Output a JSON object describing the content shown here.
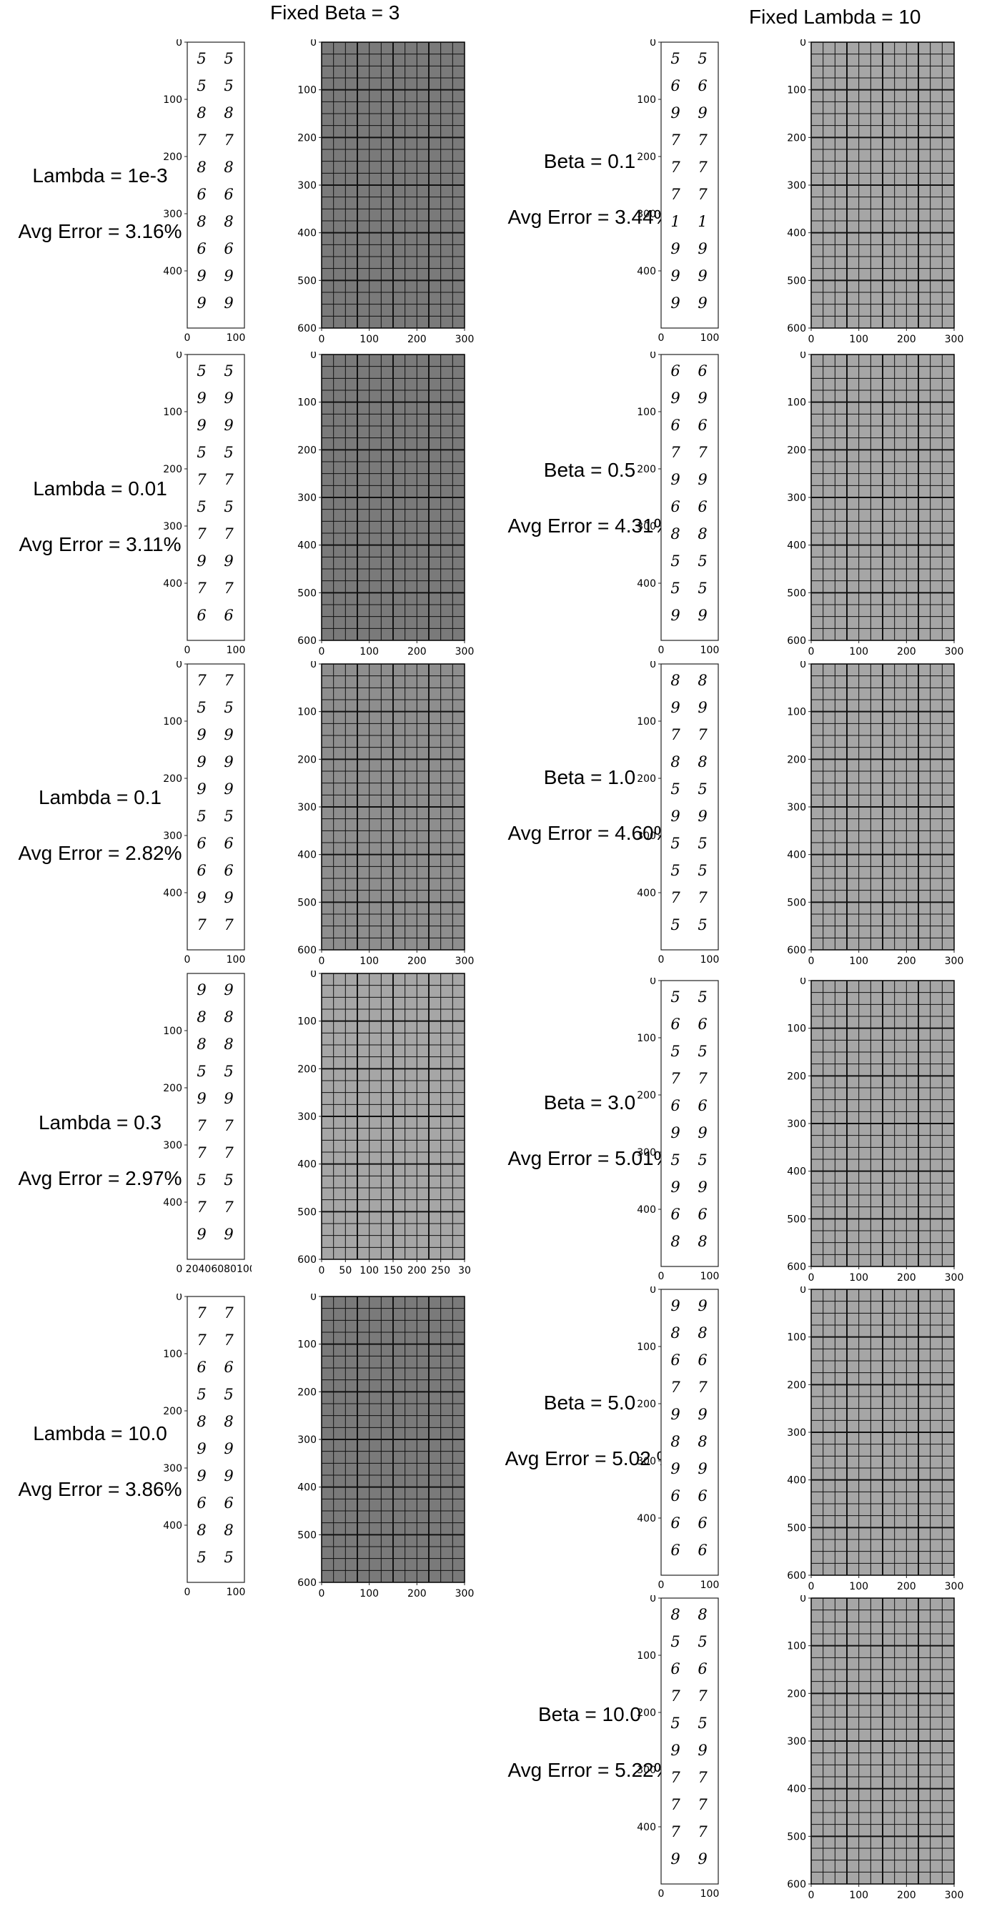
{
  "headers": {
    "left": "Fixed Beta = 3",
    "right": "Fixed Lambda = 10"
  },
  "left_rows": [
    {
      "param": "Lambda = 1e-3",
      "error": "Avg Error = 3.16%",
      "digits": [
        "5",
        "5",
        "8",
        "7",
        "8",
        "6",
        "8",
        "6",
        "9",
        "9"
      ],
      "pair_ticks": [
        "0",
        "100",
        "200",
        "300",
        "400"
      ],
      "pair_xticks": [
        "0",
        "100"
      ],
      "grid_yticks": [
        "0",
        "100",
        "200",
        "300",
        "400",
        "500",
        "600"
      ],
      "grid_xticks": [
        "0",
        "100",
        "200",
        "300"
      ],
      "tone": "dark"
    },
    {
      "param": "Lambda = 0.01",
      "error": "Avg Error = 3.11%",
      "digits": [
        "5",
        "9",
        "9",
        "5",
        "7",
        "5",
        "7",
        "9",
        "7",
        "6"
      ],
      "pair_ticks": [
        "0",
        "100",
        "200",
        "300",
        "400"
      ],
      "pair_xticks": [
        "0",
        "100"
      ],
      "grid_yticks": [
        "0",
        "100",
        "200",
        "300",
        "400",
        "500",
        "600"
      ],
      "grid_xticks": [
        "0",
        "100",
        "200",
        "300"
      ],
      "tone": "dark"
    },
    {
      "param": "Lambda = 0.1",
      "error": "Avg Error = 2.82%",
      "digits": [
        "7",
        "5",
        "9",
        "9",
        "9",
        "5",
        "6",
        "6",
        "9",
        "7"
      ],
      "pair_ticks": [
        "0",
        "100",
        "200",
        "300",
        "400"
      ],
      "pair_xticks": [
        "0",
        "100"
      ],
      "grid_yticks": [
        "0",
        "100",
        "200",
        "300",
        "400",
        "500",
        "600"
      ],
      "grid_xticks": [
        "0",
        "100",
        "200",
        "300"
      ],
      "tone": "mid"
    },
    {
      "param": "Lambda = 0.3",
      "error": "Avg Error = 2.97%",
      "digits": [
        "9",
        "8",
        "8",
        "5",
        "9",
        "7",
        "7",
        "5",
        "7",
        "9"
      ],
      "pair_ticks": [
        "100",
        "200",
        "300",
        "400"
      ],
      "pair_xticks": [
        "0 20406080100"
      ],
      "grid_yticks": [
        "0",
        "100",
        "200",
        "300",
        "400",
        "500",
        "600"
      ],
      "grid_xticks": [
        "0",
        "50",
        "100",
        "150",
        "200",
        "250",
        "30"
      ],
      "tone": "light"
    },
    {
      "param": "Lambda = 10.0",
      "error": "Avg Error = 3.86%",
      "digits": [
        "7",
        "7",
        "6",
        "5",
        "8",
        "9",
        "9",
        "6",
        "8",
        "5"
      ],
      "pair_ticks": [
        "0",
        "100",
        "200",
        "300",
        "400"
      ],
      "pair_xticks": [
        "0",
        "100"
      ],
      "grid_yticks": [
        "0",
        "100",
        "200",
        "300",
        "400",
        "500",
        "600"
      ],
      "grid_xticks": [
        "0",
        "100",
        "200",
        "300"
      ],
      "tone": "dark"
    }
  ],
  "right_rows": [
    {
      "param": "Beta = 0.1",
      "error": "Avg Error = 3.44%",
      "digits": [
        "5",
        "6",
        "9",
        "7",
        "7",
        "7",
        "1",
        "9",
        "9",
        "9"
      ],
      "pair_ticks": [
        "0",
        "100",
        "200",
        "300",
        "400"
      ],
      "pair_xticks": [
        "0",
        "100"
      ],
      "grid_yticks": [
        "0",
        "100",
        "200",
        "300",
        "400",
        "500",
        "600"
      ],
      "grid_xticks": [
        "0",
        "100",
        "200",
        "300"
      ],
      "tone": "light"
    },
    {
      "param": "Beta = 0.5",
      "error": "Avg Error = 4.31%",
      "digits": [
        "6",
        "9",
        "6",
        "7",
        "9",
        "6",
        "8",
        "5",
        "5",
        "9"
      ],
      "pair_ticks": [
        "0",
        "100",
        "200",
        "300",
        "400"
      ],
      "pair_xticks": [
        "0",
        "100"
      ],
      "grid_yticks": [
        "0",
        "100",
        "200",
        "300",
        "400",
        "500",
        "600"
      ],
      "grid_xticks": [
        "0",
        "100",
        "200",
        "300"
      ],
      "tone": "light"
    },
    {
      "param": "Beta = 1.0",
      "error": "Avg Error = 4.60%",
      "digits": [
        "8",
        "9",
        "7",
        "8",
        "5",
        "9",
        "5",
        "5",
        "7",
        "5"
      ],
      "pair_ticks": [
        "0",
        "100",
        "200",
        "300",
        "400"
      ],
      "pair_xticks": [
        "0",
        "100"
      ],
      "grid_yticks": [
        "0",
        "100",
        "200",
        "300",
        "400",
        "500",
        "600"
      ],
      "grid_xticks": [
        "0",
        "100",
        "200",
        "300"
      ],
      "tone": "light"
    },
    {
      "param": "Beta = 3.0",
      "error": "Avg Error = 5.01%",
      "digits": [
        "5",
        "6",
        "5",
        "7",
        "6",
        "9",
        "5",
        "9",
        "6",
        "8"
      ],
      "pair_ticks": [
        "0",
        "100",
        "200",
        "300",
        "400"
      ],
      "pair_xticks": [
        "0",
        "100"
      ],
      "grid_yticks": [
        "0",
        "100",
        "200",
        "300",
        "400",
        "500",
        "600"
      ],
      "grid_xticks": [
        "0",
        "100",
        "200",
        "300"
      ],
      "tone": "light"
    },
    {
      "param": "Beta = 5.0",
      "error": "Avg Error = 5.02 %",
      "digits": [
        "9",
        "8",
        "6",
        "7",
        "9",
        "8",
        "9",
        "6",
        "6",
        "6"
      ],
      "pair_ticks": [
        "0",
        "100",
        "200",
        "300",
        "400"
      ],
      "pair_xticks": [
        "0",
        "100"
      ],
      "grid_yticks": [
        "0",
        "100",
        "200",
        "300",
        "400",
        "500",
        "600"
      ],
      "grid_xticks": [
        "0",
        "100",
        "200",
        "300"
      ],
      "tone": "light"
    },
    {
      "param": "Beta = 10.0",
      "error": "Avg Error = 5.22%",
      "digits": [
        "8",
        "5",
        "6",
        "7",
        "5",
        "9",
        "7",
        "7",
        "7",
        "9"
      ],
      "pair_ticks": [
        "0",
        "100",
        "200",
        "300",
        "400"
      ],
      "pair_xticks": [
        "0",
        "100"
      ],
      "grid_yticks": [
        "0",
        "100",
        "200",
        "300",
        "400",
        "500",
        "600"
      ],
      "grid_xticks": [
        "0",
        "100",
        "200",
        "300"
      ],
      "tone": "light"
    }
  ],
  "colors": {
    "grid_dark": "#7a7a7a",
    "grid_mid": "#8e8e8e",
    "grid_light": "#a6a6a6",
    "grid_lines": "#111111"
  }
}
